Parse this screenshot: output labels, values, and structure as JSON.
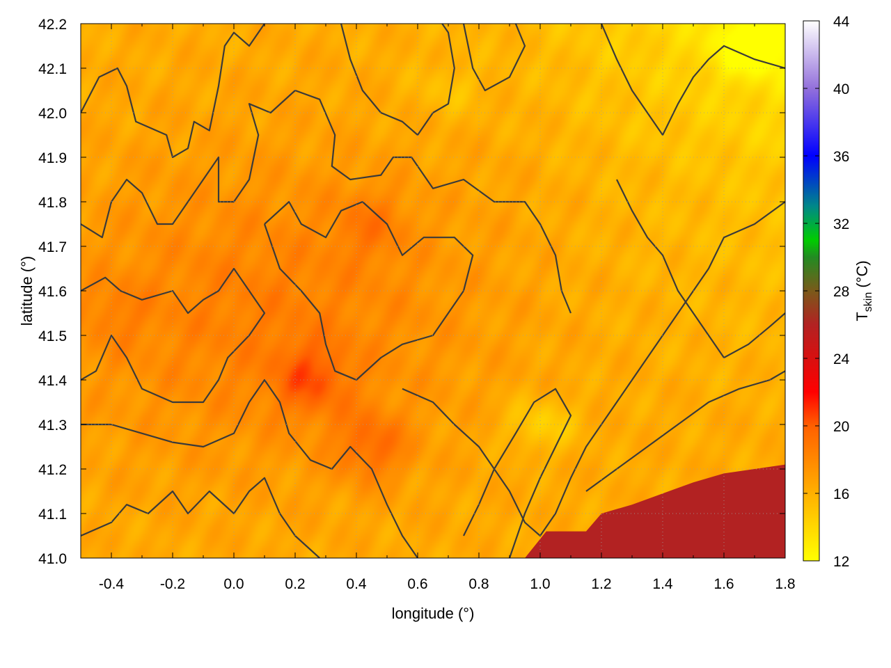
{
  "chart_data": {
    "type": "heatmap",
    "title": "",
    "xlabel": "longitude (°)",
    "ylabel": "latitude (°)",
    "colorbar_label_main": "T",
    "colorbar_label_sub": "skin",
    "colorbar_label_unit": " (°C)",
    "xlim": [
      -0.5,
      1.8
    ],
    "ylim": [
      41.0,
      42.2
    ],
    "x_ticks": [
      -0.4,
      -0.2,
      0.0,
      0.2,
      0.4,
      0.6,
      0.8,
      1.0,
      1.2,
      1.4,
      1.6,
      1.8
    ],
    "x_tick_labels": [
      "-0.4",
      "-0.2",
      "0.0",
      "0.2",
      "0.4",
      "0.6",
      "0.8",
      "1.0",
      "1.2",
      "1.4",
      "1.6",
      "1.8"
    ],
    "y_ticks": [
      41.0,
      41.1,
      41.2,
      41.3,
      41.4,
      41.5,
      41.6,
      41.7,
      41.8,
      41.9,
      42.0,
      42.1,
      42.2
    ],
    "y_tick_labels": [
      "41.0",
      "41.1",
      "41.2",
      "41.3",
      "41.4",
      "41.5",
      "41.6",
      "41.7",
      "41.8",
      "41.9",
      "42.0",
      "42.1",
      "42.2"
    ],
    "grid": true,
    "colorbar": {
      "range": [
        12,
        44
      ],
      "ticks": [
        12,
        16,
        20,
        24,
        28,
        32,
        36,
        40,
        44
      ],
      "tick_labels": [
        "12",
        "16",
        "20",
        "24",
        "28",
        "32",
        "36",
        "40",
        "44"
      ],
      "palette": [
        {
          "v": 12,
          "c": "#ffff00"
        },
        {
          "v": 16,
          "c": "#ffb000"
        },
        {
          "v": 20,
          "c": "#ff6000"
        },
        {
          "v": 22,
          "c": "#ff0000"
        },
        {
          "v": 24,
          "c": "#d81010"
        },
        {
          "v": 26,
          "c": "#b22222"
        },
        {
          "v": 28,
          "c": "#7a5a1a"
        },
        {
          "v": 30,
          "c": "#228b22"
        },
        {
          "v": 31,
          "c": "#00cc00"
        },
        {
          "v": 33,
          "c": "#008888"
        },
        {
          "v": 36,
          "c": "#0000ff"
        },
        {
          "v": 40,
          "c": "#9370db"
        },
        {
          "v": 44,
          "c": "#ffffff"
        }
      ]
    },
    "sea_color": "#b22222",
    "field_description": "Skin temperature map: ~17-19 °C over the western and central interior (peaks ~20-21 °C near 0.4°E 41.7°N and along 41.4°N 0.1-0.5°E), ~14-16 °C toward the north and east, ~12 °C in the northeast corner, with a sea area (dark red) in the southeast below a coastline from 0.95°E 41.0°N to 1.8°E 41.21°N.",
    "hot_spots": [
      {
        "x": 0.45,
        "y": 41.75,
        "value": 20
      },
      {
        "x": 0.25,
        "y": 41.4,
        "value": 21
      },
      {
        "x": 0.45,
        "y": 41.25,
        "value": 21
      },
      {
        "x": -0.4,
        "y": 41.55,
        "value": 19.5
      }
    ],
    "cool_spots": [
      {
        "x": 1.7,
        "y": 42.15,
        "value": 12.5
      },
      {
        "x": 1.0,
        "y": 41.3,
        "value": 14
      },
      {
        "x": 0.7,
        "y": 42.05,
        "value": 15
      }
    ],
    "coastline": [
      [
        0.95,
        41.0
      ],
      [
        1.02,
        41.06
      ],
      [
        1.15,
        41.06
      ],
      [
        1.2,
        41.1
      ],
      [
        1.3,
        41.12
      ],
      [
        1.42,
        41.15
      ],
      [
        1.5,
        41.17
      ],
      [
        1.6,
        41.19
      ],
      [
        1.7,
        41.2
      ],
      [
        1.8,
        41.21
      ]
    ],
    "contours": [
      [
        [
          -0.5,
          42.0
        ],
        [
          -0.44,
          42.08
        ],
        [
          -0.38,
          42.1
        ],
        [
          -0.35,
          42.06
        ],
        [
          -0.32,
          41.98
        ],
        [
          -0.22,
          41.95
        ],
        [
          -0.2,
          41.9
        ],
        [
          -0.15,
          41.92
        ],
        [
          -0.13,
          41.98
        ],
        [
          -0.08,
          41.96
        ],
        [
          -0.05,
          42.06
        ],
        [
          -0.03,
          42.15
        ],
        [
          0.0,
          42.18
        ],
        [
          0.05,
          42.15
        ],
        [
          0.1,
          42.2
        ]
      ],
      [
        [
          -0.5,
          41.75
        ],
        [
          -0.43,
          41.72
        ],
        [
          -0.4,
          41.8
        ],
        [
          -0.35,
          41.85
        ],
        [
          -0.3,
          41.82
        ],
        [
          -0.25,
          41.75
        ],
        [
          -0.2,
          41.75
        ],
        [
          -0.15,
          41.8
        ],
        [
          -0.1,
          41.85
        ],
        [
          -0.05,
          41.9
        ],
        [
          -0.05,
          41.8
        ],
        [
          0.0,
          41.8
        ],
        [
          0.05,
          41.85
        ],
        [
          0.08,
          41.95
        ],
        [
          0.05,
          42.02
        ],
        [
          0.12,
          42.0
        ],
        [
          0.2,
          42.05
        ],
        [
          0.28,
          42.03
        ],
        [
          0.33,
          41.95
        ],
        [
          0.32,
          41.88
        ],
        [
          0.38,
          41.85
        ],
        [
          0.48,
          41.86
        ],
        [
          0.52,
          41.9
        ],
        [
          0.58,
          41.9
        ],
        [
          0.65,
          41.83
        ],
        [
          0.75,
          41.85
        ],
        [
          0.85,
          41.8
        ],
        [
          0.95,
          41.8
        ],
        [
          1.0,
          41.75
        ],
        [
          1.05,
          41.68
        ],
        [
          1.07,
          41.6
        ],
        [
          1.1,
          41.55
        ]
      ],
      [
        [
          -0.5,
          41.6
        ],
        [
          -0.42,
          41.63
        ],
        [
          -0.37,
          41.6
        ],
        [
          -0.3,
          41.58
        ],
        [
          -0.2,
          41.6
        ],
        [
          -0.15,
          41.55
        ],
        [
          -0.1,
          41.58
        ],
        [
          -0.05,
          41.6
        ],
        [
          0.0,
          41.65
        ],
        [
          0.05,
          41.6
        ],
        [
          0.1,
          41.55
        ],
        [
          0.05,
          41.5
        ],
        [
          -0.02,
          41.45
        ],
        [
          -0.05,
          41.4
        ],
        [
          -0.1,
          41.35
        ],
        [
          -0.2,
          41.35
        ],
        [
          -0.3,
          41.38
        ],
        [
          -0.35,
          41.45
        ],
        [
          -0.4,
          41.5
        ],
        [
          -0.45,
          41.42
        ],
        [
          -0.5,
          41.4
        ]
      ],
      [
        [
          -0.5,
          41.3
        ],
        [
          -0.4,
          41.3
        ],
        [
          -0.3,
          41.28
        ],
        [
          -0.2,
          41.26
        ],
        [
          -0.1,
          41.25
        ],
        [
          0.0,
          41.28
        ],
        [
          0.05,
          41.35
        ],
        [
          0.1,
          41.4
        ],
        [
          0.15,
          41.35
        ],
        [
          0.18,
          41.28
        ],
        [
          0.25,
          41.22
        ],
        [
          0.32,
          41.2
        ],
        [
          0.38,
          41.25
        ],
        [
          0.45,
          41.2
        ],
        [
          0.5,
          41.12
        ],
        [
          0.55,
          41.05
        ],
        [
          0.6,
          41.0
        ]
      ],
      [
        [
          -0.5,
          41.05
        ],
        [
          -0.4,
          41.08
        ],
        [
          -0.35,
          41.12
        ],
        [
          -0.28,
          41.1
        ],
        [
          -0.2,
          41.15
        ],
        [
          -0.15,
          41.1
        ],
        [
          -0.08,
          41.15
        ],
        [
          0.0,
          41.1
        ],
        [
          0.05,
          41.15
        ],
        [
          0.1,
          41.18
        ],
        [
          0.15,
          41.1
        ],
        [
          0.2,
          41.05
        ],
        [
          0.28,
          41.0
        ]
      ],
      [
        [
          0.1,
          41.75
        ],
        [
          0.15,
          41.65
        ],
        [
          0.22,
          41.6
        ],
        [
          0.28,
          41.55
        ],
        [
          0.3,
          41.48
        ],
        [
          0.33,
          41.42
        ],
        [
          0.4,
          41.4
        ],
        [
          0.48,
          41.45
        ],
        [
          0.55,
          41.48
        ],
        [
          0.65,
          41.5
        ],
        [
          0.7,
          41.55
        ],
        [
          0.75,
          41.6
        ],
        [
          0.78,
          41.68
        ],
        [
          0.72,
          41.72
        ],
        [
          0.62,
          41.72
        ],
        [
          0.55,
          41.68
        ],
        [
          0.5,
          41.75
        ],
        [
          0.42,
          41.8
        ],
        [
          0.35,
          41.78
        ],
        [
          0.3,
          41.72
        ],
        [
          0.22,
          41.75
        ],
        [
          0.18,
          41.8
        ],
        [
          0.1,
          41.75
        ]
      ],
      [
        [
          0.55,
          41.38
        ],
        [
          0.65,
          41.35
        ],
        [
          0.72,
          41.3
        ],
        [
          0.8,
          41.25
        ],
        [
          0.85,
          41.2
        ],
        [
          0.9,
          41.15
        ],
        [
          0.95,
          41.08
        ],
        [
          1.0,
          41.05
        ],
        [
          1.05,
          41.1
        ],
        [
          1.1,
          41.18
        ],
        [
          1.15,
          41.25
        ],
        [
          1.2,
          41.3
        ],
        [
          1.25,
          41.35
        ],
        [
          1.3,
          41.4
        ],
        [
          1.35,
          41.45
        ],
        [
          1.4,
          41.5
        ],
        [
          1.45,
          41.55
        ],
        [
          1.5,
          41.6
        ],
        [
          1.55,
          41.65
        ],
        [
          1.6,
          41.72
        ],
        [
          1.7,
          41.75
        ],
        [
          1.8,
          41.8
        ]
      ],
      [
        [
          0.75,
          41.05
        ],
        [
          0.8,
          41.12
        ],
        [
          0.85,
          41.2
        ],
        [
          0.92,
          41.28
        ],
        [
          0.98,
          41.35
        ],
        [
          1.05,
          41.38
        ],
        [
          1.1,
          41.32
        ],
        [
          1.05,
          41.25
        ],
        [
          1.0,
          41.18
        ],
        [
          0.95,
          41.1
        ],
        [
          0.9,
          41.0
        ]
      ],
      [
        [
          1.15,
          41.15
        ],
        [
          1.25,
          41.2
        ],
        [
          1.35,
          41.25
        ],
        [
          1.45,
          41.3
        ],
        [
          1.55,
          41.35
        ],
        [
          1.65,
          41.38
        ],
        [
          1.75,
          41.4
        ],
        [
          1.8,
          41.42
        ]
      ],
      [
        [
          0.75,
          42.2
        ],
        [
          0.78,
          42.1
        ],
        [
          0.82,
          42.05
        ],
        [
          0.9,
          42.08
        ],
        [
          0.95,
          42.15
        ],
        [
          0.92,
          42.2
        ]
      ],
      [
        [
          1.2,
          42.2
        ],
        [
          1.25,
          42.12
        ],
        [
          1.3,
          42.05
        ],
        [
          1.35,
          42.0
        ],
        [
          1.4,
          41.95
        ],
        [
          1.45,
          42.02
        ],
        [
          1.5,
          42.08
        ],
        [
          1.55,
          42.12
        ],
        [
          1.6,
          42.15
        ],
        [
          1.7,
          42.12
        ],
        [
          1.8,
          42.1
        ]
      ],
      [
        [
          1.25,
          41.85
        ],
        [
          1.3,
          41.78
        ],
        [
          1.35,
          41.72
        ],
        [
          1.4,
          41.68
        ],
        [
          1.45,
          41.6
        ],
        [
          1.5,
          41.55
        ],
        [
          1.55,
          41.5
        ],
        [
          1.6,
          41.45
        ],
        [
          1.68,
          41.48
        ],
        [
          1.75,
          41.52
        ],
        [
          1.8,
          41.55
        ]
      ],
      [
        [
          0.35,
          42.2
        ],
        [
          0.38,
          42.12
        ],
        [
          0.42,
          42.05
        ],
        [
          0.48,
          42.0
        ],
        [
          0.55,
          41.98
        ],
        [
          0.6,
          41.95
        ],
        [
          0.65,
          42.0
        ],
        [
          0.7,
          42.02
        ],
        [
          0.72,
          42.1
        ],
        [
          0.7,
          42.18
        ],
        [
          0.68,
          42.2
        ]
      ]
    ]
  }
}
